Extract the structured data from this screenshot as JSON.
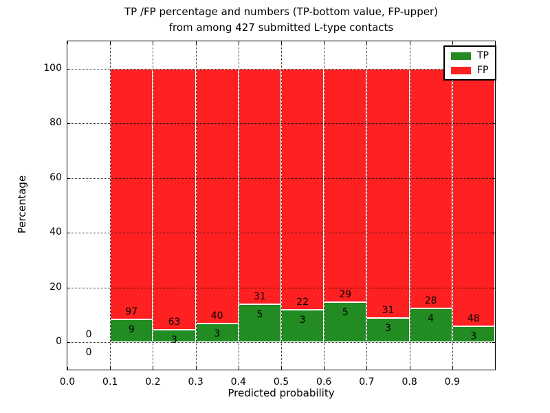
{
  "figure": {
    "title_line1": "TP /FP percentage and numbers (TP-bottom value, FP-upper)",
    "title_line2": "from among 427 submitted L-type contacts",
    "xlabel": "Predicted probability",
    "ylabel": "Percentage"
  },
  "legend": {
    "items": [
      {
        "label": "TP",
        "color": "#228B22"
      },
      {
        "label": "FP",
        "color": "#FF2121"
      }
    ]
  },
  "chart_data": {
    "type": "bar",
    "stacked": true,
    "normalized_to_percent": true,
    "title": "TP /FP percentage and numbers (TP-bottom value, FP-upper) from among 427 submitted L-type contacts",
    "xlabel": "Predicted probability",
    "ylabel": "Percentage",
    "xlim": [
      0.0,
      1.0
    ],
    "ylim": [
      -10,
      110
    ],
    "grid": true,
    "legend_position": "upper right",
    "x_ticks": [
      "0.0",
      "0.1",
      "0.2",
      "0.3",
      "0.4",
      "0.5",
      "0.6",
      "0.7",
      "0.8",
      "0.9"
    ],
    "y_ticks": [
      "0",
      "20",
      "40",
      "60",
      "80",
      "100"
    ],
    "bar_width": 0.1,
    "total_contacts": 427,
    "series": [
      {
        "name": "TP",
        "color": "#228B22"
      },
      {
        "name": "FP",
        "color": "#FF2121"
      }
    ],
    "bins": [
      {
        "x0": 0.0,
        "x1": 0.1,
        "tp_count": 0,
        "fp_count": 0,
        "tp_pct": 0.0,
        "fp_pct": 0.0,
        "has_bar": false
      },
      {
        "x0": 0.1,
        "x1": 0.2,
        "tp_count": 9,
        "fp_count": 97,
        "tp_pct": 8.49,
        "fp_pct": 91.51,
        "has_bar": true
      },
      {
        "x0": 0.2,
        "x1": 0.3,
        "tp_count": 3,
        "fp_count": 63,
        "tp_pct": 4.55,
        "fp_pct": 95.45,
        "has_bar": true
      },
      {
        "x0": 0.3,
        "x1": 0.4,
        "tp_count": 3,
        "fp_count": 40,
        "tp_pct": 6.98,
        "fp_pct": 93.02,
        "has_bar": true
      },
      {
        "x0": 0.4,
        "x1": 0.5,
        "tp_count": 5,
        "fp_count": 31,
        "tp_pct": 13.89,
        "fp_pct": 86.11,
        "has_bar": true
      },
      {
        "x0": 0.5,
        "x1": 0.6,
        "tp_count": 3,
        "fp_count": 22,
        "tp_pct": 12.0,
        "fp_pct": 88.0,
        "has_bar": true
      },
      {
        "x0": 0.6,
        "x1": 0.7,
        "tp_count": 5,
        "fp_count": 29,
        "tp_pct": 14.71,
        "fp_pct": 85.29,
        "has_bar": true
      },
      {
        "x0": 0.7,
        "x1": 0.8,
        "tp_count": 3,
        "fp_count": 31,
        "tp_pct": 8.82,
        "fp_pct": 91.18,
        "has_bar": true
      },
      {
        "x0": 0.8,
        "x1": 0.9,
        "tp_count": 4,
        "fp_count": 28,
        "tp_pct": 12.5,
        "fp_pct": 87.5,
        "has_bar": true
      },
      {
        "x0": 0.9,
        "x1": 1.0,
        "tp_count": 3,
        "fp_count": 48,
        "tp_pct": 5.88,
        "fp_pct": 94.12,
        "has_bar": true
      }
    ]
  }
}
